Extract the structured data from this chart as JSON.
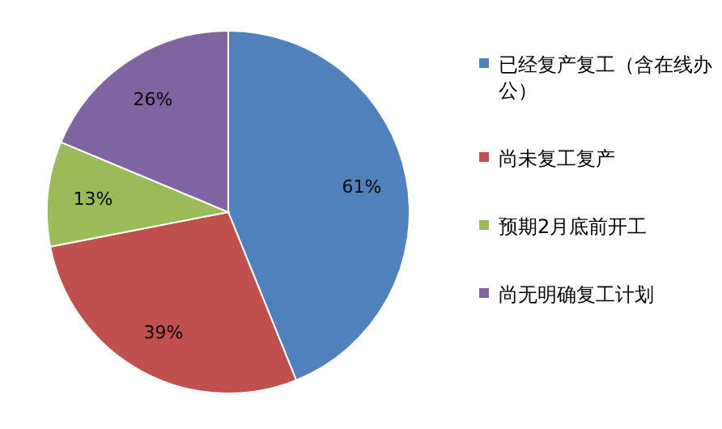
{
  "chart_data": {
    "type": "pie",
    "categories": [
      "已经复产复工（含在线办公）",
      "尚未复工复产",
      "预期2月底前开工",
      "尚无明确复工计划"
    ],
    "values": [
      61,
      39,
      13,
      26
    ],
    "value_labels": [
      "61%",
      "39%",
      "13%",
      "26%"
    ],
    "colors": [
      "#4f81bd",
      "#c0504d",
      "#9bbb59",
      "#8064a2"
    ],
    "legend": "right"
  }
}
